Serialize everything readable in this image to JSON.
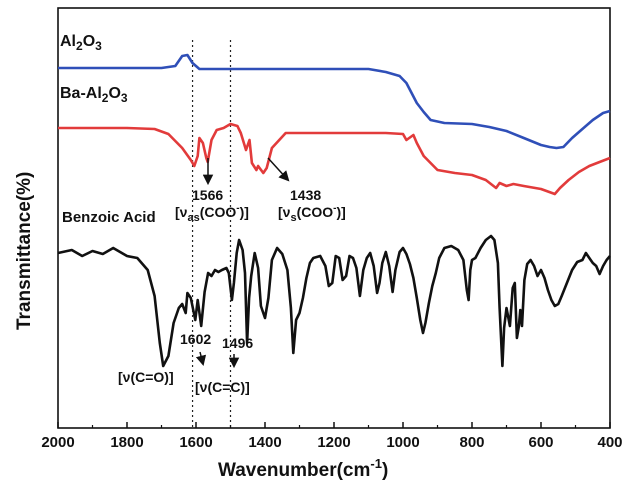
{
  "chart_data": {
    "type": "line",
    "xlabel": "Wavenumber(cm",
    "xlabel_sup": "-1",
    "xlabel_close": ")",
    "ylabel": "Transmittance(%)",
    "xlim": [
      2000,
      400
    ],
    "x_reversed": true,
    "x_ticks": [
      2000,
      1800,
      1600,
      1400,
      1200,
      1000,
      800,
      600,
      400
    ],
    "series": [
      {
        "label_parts": [
          "Al",
          "2",
          "O",
          "3"
        ],
        "color": "#2f4fb8",
        "points": [
          [
            2000,
            60
          ],
          [
            1900,
            60
          ],
          [
            1800,
            60
          ],
          [
            1700,
            60
          ],
          [
            1660,
            58
          ],
          [
            1640,
            48
          ],
          [
            1625,
            47
          ],
          [
            1610,
            55
          ],
          [
            1590,
            61
          ],
          [
            1500,
            61
          ],
          [
            1400,
            61
          ],
          [
            1300,
            61
          ],
          [
            1200,
            61
          ],
          [
            1100,
            61
          ],
          [
            1050,
            64
          ],
          [
            1010,
            68
          ],
          [
            990,
            75
          ],
          [
            975,
            85
          ],
          [
            960,
            95
          ],
          [
            940,
            104
          ],
          [
            920,
            112
          ],
          [
            880,
            115
          ],
          [
            800,
            116
          ],
          [
            750,
            119
          ],
          [
            700,
            123
          ],
          [
            650,
            130
          ],
          [
            600,
            137
          ],
          [
            575,
            139
          ],
          [
            555,
            140
          ],
          [
            535,
            139
          ],
          [
            510,
            130
          ],
          [
            480,
            121
          ],
          [
            450,
            112
          ],
          [
            420,
            105
          ],
          [
            400,
            103
          ]
        ]
      },
      {
        "label_parts": [
          "Ba-Al",
          "2",
          "O",
          "3"
        ],
        "color": "#e23b3b",
        "points": [
          [
            2000,
            120
          ],
          [
            1900,
            120
          ],
          [
            1800,
            120
          ],
          [
            1720,
            121
          ],
          [
            1680,
            126
          ],
          [
            1640,
            140
          ],
          [
            1615,
            152
          ],
          [
            1605,
            158
          ],
          [
            1595,
            148
          ],
          [
            1590,
            130
          ],
          [
            1580,
            135
          ],
          [
            1570,
            150
          ],
          [
            1566,
            154
          ],
          [
            1555,
            132
          ],
          [
            1540,
            122
          ],
          [
            1520,
            120
          ],
          [
            1500,
            116
          ],
          [
            1480,
            118
          ],
          [
            1470,
            125
          ],
          [
            1455,
            142
          ],
          [
            1445,
            132
          ],
          [
            1438,
            155
          ],
          [
            1425,
            162
          ],
          [
            1420,
            158
          ],
          [
            1405,
            165
          ],
          [
            1395,
            160
          ],
          [
            1380,
            140
          ],
          [
            1340,
            125
          ],
          [
            1250,
            125
          ],
          [
            1150,
            125
          ],
          [
            1050,
            125
          ],
          [
            1000,
            126
          ],
          [
            990,
            132
          ],
          [
            970,
            127
          ],
          [
            960,
            135
          ],
          [
            940,
            148
          ],
          [
            900,
            162
          ],
          [
            850,
            165
          ],
          [
            800,
            167
          ],
          [
            760,
            172
          ],
          [
            730,
            180
          ],
          [
            720,
            175
          ],
          [
            700,
            178
          ],
          [
            680,
            176
          ],
          [
            650,
            178
          ],
          [
            600,
            181
          ],
          [
            560,
            186
          ],
          [
            545,
            180
          ],
          [
            520,
            172
          ],
          [
            490,
            164
          ],
          [
            460,
            158
          ],
          [
            430,
            154
          ],
          [
            400,
            150
          ]
        ]
      },
      {
        "label_parts": [
          "Benzoic Acid"
        ],
        "color": "#111111",
        "points": [
          [
            2000,
            245
          ],
          [
            1960,
            242
          ],
          [
            1930,
            248
          ],
          [
            1900,
            243
          ],
          [
            1870,
            246
          ],
          [
            1840,
            240
          ],
          [
            1800,
            248
          ],
          [
            1770,
            250
          ],
          [
            1740,
            262
          ],
          [
            1720,
            288
          ],
          [
            1705,
            335
          ],
          [
            1695,
            358
          ],
          [
            1680,
            348
          ],
          [
            1665,
            315
          ],
          [
            1650,
            300
          ],
          [
            1640,
            296
          ],
          [
            1630,
            305
          ],
          [
            1625,
            285
          ],
          [
            1615,
            290
          ],
          [
            1602,
            312
          ],
          [
            1595,
            292
          ],
          [
            1585,
            318
          ],
          [
            1575,
            284
          ],
          [
            1565,
            265
          ],
          [
            1555,
            268
          ],
          [
            1545,
            262
          ],
          [
            1535,
            264
          ],
          [
            1525,
            262
          ],
          [
            1512,
            260
          ],
          [
            1505,
            265
          ],
          [
            1496,
            292
          ],
          [
            1490,
            275
          ],
          [
            1482,
            245
          ],
          [
            1475,
            232
          ],
          [
            1465,
            242
          ],
          [
            1458,
            265
          ],
          [
            1452,
            335
          ],
          [
            1446,
            290
          ],
          [
            1440,
            268
          ],
          [
            1430,
            245
          ],
          [
            1420,
            260
          ],
          [
            1412,
            298
          ],
          [
            1400,
            310
          ],
          [
            1390,
            290
          ],
          [
            1380,
            252
          ],
          [
            1365,
            240
          ],
          [
            1350,
            246
          ],
          [
            1335,
            262
          ],
          [
            1325,
            300
          ],
          [
            1318,
            345
          ],
          [
            1310,
            312
          ],
          [
            1300,
            305
          ],
          [
            1290,
            290
          ],
          [
            1280,
            270
          ],
          [
            1270,
            255
          ],
          [
            1260,
            250
          ],
          [
            1240,
            248
          ],
          [
            1225,
            258
          ],
          [
            1215,
            278
          ],
          [
            1205,
            275
          ],
          [
            1195,
            248
          ],
          [
            1185,
            250
          ],
          [
            1175,
            272
          ],
          [
            1165,
            268
          ],
          [
            1155,
            248
          ],
          [
            1145,
            250
          ],
          [
            1135,
            260
          ],
          [
            1125,
            288
          ],
          [
            1115,
            262
          ],
          [
            1105,
            250
          ],
          [
            1095,
            245
          ],
          [
            1085,
            258
          ],
          [
            1075,
            285
          ],
          [
            1068,
            275
          ],
          [
            1060,
            255
          ],
          [
            1050,
            244
          ],
          [
            1040,
            258
          ],
          [
            1030,
            284
          ],
          [
            1022,
            262
          ],
          [
            1010,
            244
          ],
          [
            1000,
            240
          ],
          [
            990,
            246
          ],
          [
            980,
            256
          ],
          [
            970,
            270
          ],
          [
            960,
            290
          ],
          [
            950,
            312
          ],
          [
            942,
            325
          ],
          [
            935,
            315
          ],
          [
            925,
            295
          ],
          [
            915,
            278
          ],
          [
            905,
            265
          ],
          [
            895,
            250
          ],
          [
            880,
            240
          ],
          [
            860,
            238
          ],
          [
            840,
            242
          ],
          [
            825,
            252
          ],
          [
            815,
            282
          ],
          [
            810,
            292
          ],
          [
            805,
            262
          ],
          [
            800,
            252
          ],
          [
            790,
            250
          ],
          [
            775,
            240
          ],
          [
            760,
            232
          ],
          [
            745,
            228
          ],
          [
            735,
            232
          ],
          [
            725,
            255
          ],
          [
            720,
            300
          ],
          [
            712,
            358
          ],
          [
            707,
            320
          ],
          [
            700,
            300
          ],
          [
            690,
            318
          ],
          [
            682,
            280
          ],
          [
            676,
            275
          ],
          [
            670,
            330
          ],
          [
            664,
            318
          ],
          [
            660,
            302
          ],
          [
            655,
            318
          ],
          [
            648,
            272
          ],
          [
            640,
            256
          ],
          [
            630,
            252
          ],
          [
            620,
            258
          ],
          [
            610,
            268
          ],
          [
            600,
            262
          ],
          [
            590,
            270
          ],
          [
            580,
            282
          ],
          [
            570,
            292
          ],
          [
            560,
            298
          ],
          [
            550,
            296
          ],
          [
            540,
            288
          ],
          [
            525,
            275
          ],
          [
            510,
            262
          ],
          [
            495,
            254
          ],
          [
            480,
            252
          ],
          [
            470,
            245
          ],
          [
            460,
            250
          ],
          [
            450,
            255
          ],
          [
            440,
            258
          ],
          [
            430,
            266
          ],
          [
            420,
            258
          ],
          [
            410,
            252
          ],
          [
            400,
            248
          ]
        ]
      }
    ],
    "annotations": [
      {
        "text": "1566",
        "type": "peak"
      },
      {
        "text": "1438",
        "type": "peak"
      },
      {
        "text_parts": [
          "[ν",
          "as",
          "(COO",
          "-",
          ")]"
        ]
      },
      {
        "text_parts": [
          "[ν",
          "s",
          "(COO",
          "-",
          ")]"
        ]
      },
      {
        "text": "1602",
        "type": "peak"
      },
      {
        "text": "1496",
        "type": "peak"
      },
      {
        "text": "[ν(C=O)]"
      },
      {
        "text": "[ν(C=C)]"
      }
    ],
    "reference_lines_x": [
      1610,
      1500
    ],
    "grid": false,
    "legend": "inline labels"
  }
}
